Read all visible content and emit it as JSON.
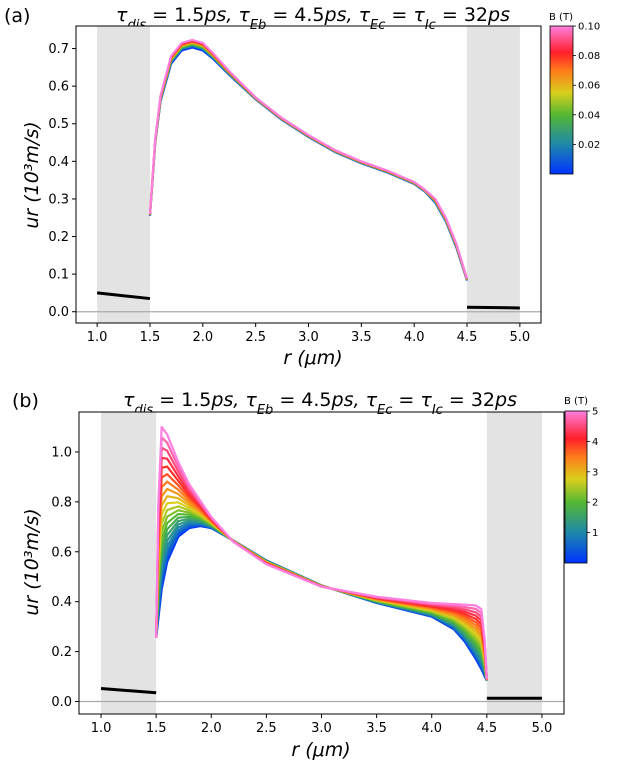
{
  "chart_data": [
    {
      "type": "line",
      "panel_label": "(a)",
      "title": "τdis = 1.5ps, τEb = 4.5ps, τEc = τIc = 32ps",
      "title_parts": [
        {
          "t": "τ"
        },
        {
          "t": "dis",
          "sub": true
        },
        {
          "t": " = 1.5"
        },
        {
          "t": "ps",
          "it": true
        },
        {
          "t": ", τ"
        },
        {
          "t": "Eb",
          "sub": true
        },
        {
          "t": " = 4.5"
        },
        {
          "t": "ps",
          "it": true
        },
        {
          "t": ", τ"
        },
        {
          "t": "Ec",
          "sub": true
        },
        {
          "t": " = τ"
        },
        {
          "t": "Ic",
          "sub": true
        },
        {
          "t": " = 32"
        },
        {
          "t": "ps",
          "it": true
        }
      ],
      "xlabel": "r (μm)",
      "ylabel": "ur (10³m/s)",
      "xlim": [
        0.8,
        5.2
      ],
      "ylim": [
        -0.03,
        0.76
      ],
      "xticks": [
        "1.0",
        "1.5",
        "2.0",
        "2.5",
        "3.0",
        "3.5",
        "4.0",
        "4.5",
        "5.0"
      ],
      "yticks": [
        "0.0",
        "0.1",
        "0.2",
        "0.3",
        "0.4",
        "0.5",
        "0.6",
        "0.7"
      ],
      "shaded_regions": [
        [
          1.0,
          1.5
        ],
        [
          4.5,
          5.0
        ]
      ],
      "zero_line": 0,
      "colorbar": {
        "label": "B (T)",
        "min": 0,
        "max": 0.1,
        "ticks": [
          "0.10",
          "0.08",
          "0.06",
          "0.04",
          "0.02"
        ]
      },
      "black_segments": [
        {
          "x": [
            1.0,
            1.5
          ],
          "y": [
            0.05,
            0.035
          ]
        },
        {
          "x": [
            4.5,
            5.0
          ],
          "y": [
            0.012,
            0.01
          ]
        }
      ],
      "series": [
        {
          "B": 0.0,
          "x": [
            1.5,
            1.55,
            1.6,
            1.7,
            1.8,
            1.9,
            2.0,
            2.1,
            2.25,
            2.5,
            2.75,
            3.0,
            3.25,
            3.5,
            3.75,
            4.0,
            4.1,
            4.2,
            4.3,
            4.4,
            4.5
          ],
          "y": [
            0.255,
            0.45,
            0.56,
            0.66,
            0.695,
            0.703,
            0.695,
            0.672,
            0.63,
            0.565,
            0.51,
            0.465,
            0.425,
            0.395,
            0.37,
            0.34,
            0.32,
            0.29,
            0.24,
            0.17,
            0.083
          ]
        },
        {
          "B": 0.02,
          "x": [
            1.5,
            1.55,
            1.6,
            1.7,
            1.8,
            1.9,
            2.0,
            2.1,
            2.25,
            2.5,
            2.75,
            3.0,
            3.25,
            3.5,
            3.75,
            4.0,
            4.1,
            4.2,
            4.3,
            4.4,
            4.5
          ],
          "y": [
            0.256,
            0.452,
            0.563,
            0.664,
            0.699,
            0.707,
            0.699,
            0.675,
            0.632,
            0.566,
            0.511,
            0.466,
            0.426,
            0.396,
            0.371,
            0.341,
            0.321,
            0.292,
            0.242,
            0.172,
            0.084
          ]
        },
        {
          "B": 0.04,
          "x": [
            1.5,
            1.55,
            1.6,
            1.7,
            1.8,
            1.9,
            2.0,
            2.1,
            2.25,
            2.5,
            2.75,
            3.0,
            3.25,
            3.5,
            3.75,
            4.0,
            4.1,
            4.2,
            4.3,
            4.4,
            4.5
          ],
          "y": [
            0.257,
            0.454,
            0.566,
            0.668,
            0.703,
            0.711,
            0.703,
            0.678,
            0.634,
            0.567,
            0.512,
            0.467,
            0.427,
            0.397,
            0.372,
            0.342,
            0.322,
            0.294,
            0.244,
            0.174,
            0.085
          ]
        },
        {
          "B": 0.06,
          "x": [
            1.5,
            1.55,
            1.6,
            1.7,
            1.8,
            1.9,
            2.0,
            2.1,
            2.25,
            2.5,
            2.75,
            3.0,
            3.25,
            3.5,
            3.75,
            4.0,
            4.1,
            4.2,
            4.3,
            4.4,
            4.5
          ],
          "y": [
            0.258,
            0.456,
            0.569,
            0.672,
            0.707,
            0.715,
            0.707,
            0.681,
            0.636,
            0.568,
            0.513,
            0.468,
            0.428,
            0.398,
            0.373,
            0.343,
            0.323,
            0.296,
            0.246,
            0.176,
            0.086
          ]
        },
        {
          "B": 0.08,
          "x": [
            1.5,
            1.55,
            1.6,
            1.7,
            1.8,
            1.9,
            2.0,
            2.1,
            2.25,
            2.5,
            2.75,
            3.0,
            3.25,
            3.5,
            3.75,
            4.0,
            4.1,
            4.2,
            4.3,
            4.4,
            4.5
          ],
          "y": [
            0.259,
            0.458,
            0.572,
            0.676,
            0.711,
            0.719,
            0.711,
            0.684,
            0.638,
            0.569,
            0.514,
            0.469,
            0.429,
            0.399,
            0.374,
            0.344,
            0.324,
            0.298,
            0.248,
            0.178,
            0.087
          ]
        },
        {
          "B": 0.1,
          "x": [
            1.5,
            1.55,
            1.6,
            1.7,
            1.8,
            1.9,
            2.0,
            2.1,
            2.25,
            2.5,
            2.75,
            3.0,
            3.25,
            3.5,
            3.75,
            4.0,
            4.1,
            4.2,
            4.3,
            4.4,
            4.5
          ],
          "y": [
            0.26,
            0.46,
            0.575,
            0.68,
            0.715,
            0.723,
            0.715,
            0.687,
            0.64,
            0.57,
            0.515,
            0.47,
            0.43,
            0.4,
            0.375,
            0.345,
            0.325,
            0.3,
            0.25,
            0.18,
            0.088
          ]
        }
      ]
    },
    {
      "type": "line",
      "panel_label": "(b)",
      "title": "τdis = 1.5ps, τEb = 4.5ps, τEc = τIc = 32ps",
      "title_parts": [
        {
          "t": "τ"
        },
        {
          "t": "dis",
          "sub": true
        },
        {
          "t": " = 1.5"
        },
        {
          "t": "ps",
          "it": true
        },
        {
          "t": ", τ"
        },
        {
          "t": "Eb",
          "sub": true
        },
        {
          "t": " = 4.5"
        },
        {
          "t": "ps",
          "it": true
        },
        {
          "t": ", τ"
        },
        {
          "t": "Ec",
          "sub": true
        },
        {
          "t": " = τ"
        },
        {
          "t": "Ic",
          "sub": true
        },
        {
          "t": " = 32"
        },
        {
          "t": "ps",
          "it": true
        }
      ],
      "xlabel": "r (μm)",
      "ylabel": "ur (10³m/s)",
      "xlim": [
        0.8,
        5.2
      ],
      "ylim": [
        -0.05,
        1.16
      ],
      "xticks": [
        "1.0",
        "1.5",
        "2.0",
        "2.5",
        "3.0",
        "3.5",
        "4.0",
        "4.5",
        "5.0"
      ],
      "yticks": [
        "0.0",
        "0.2",
        "0.4",
        "0.6",
        "0.8",
        "1.0"
      ],
      "shaded_regions": [
        [
          1.0,
          1.5
        ],
        [
          4.5,
          5.0
        ]
      ],
      "zero_line": 0,
      "colorbar": {
        "label": "B (T)",
        "min": 0,
        "max": 5,
        "ticks": [
          "5",
          "4",
          "3",
          "2",
          "1"
        ]
      },
      "black_segments": [
        {
          "x": [
            1.0,
            1.5
          ],
          "y": [
            0.052,
            0.035
          ]
        },
        {
          "x": [
            4.5,
            5.0
          ],
          "y": [
            0.013,
            0.013
          ]
        }
      ],
      "series_model": {
        "B_values": [
          0,
          0.25,
          0.5,
          0.75,
          1.0,
          1.25,
          1.5,
          1.75,
          2.0,
          2.25,
          2.5,
          2.75,
          3.0,
          3.25,
          3.5,
          3.75,
          4.0,
          4.25,
          4.5,
          4.75,
          5.0
        ],
        "low_B_curve": {
          "x": [
            1.5,
            1.55,
            1.6,
            1.7,
            1.8,
            1.9,
            2.0,
            2.2,
            2.5,
            3.0,
            3.5,
            4.0,
            4.2,
            4.3,
            4.4,
            4.45,
            4.5
          ],
          "y": [
            0.255,
            0.45,
            0.56,
            0.66,
            0.695,
            0.703,
            0.695,
            0.645,
            0.565,
            0.465,
            0.395,
            0.34,
            0.29,
            0.24,
            0.17,
            0.13,
            0.083
          ]
        },
        "high_B_curve": {
          "x": [
            1.5,
            1.52,
            1.55,
            1.6,
            1.7,
            1.8,
            2.0,
            2.2,
            2.5,
            3.0,
            3.5,
            4.0,
            4.3,
            4.4,
            4.45,
            4.48,
            4.5
          ],
          "y": [
            0.255,
            0.8,
            1.1,
            1.07,
            0.96,
            0.87,
            0.74,
            0.64,
            0.55,
            0.46,
            0.42,
            0.395,
            0.388,
            0.385,
            0.37,
            0.25,
            0.09
          ]
        }
      }
    }
  ]
}
